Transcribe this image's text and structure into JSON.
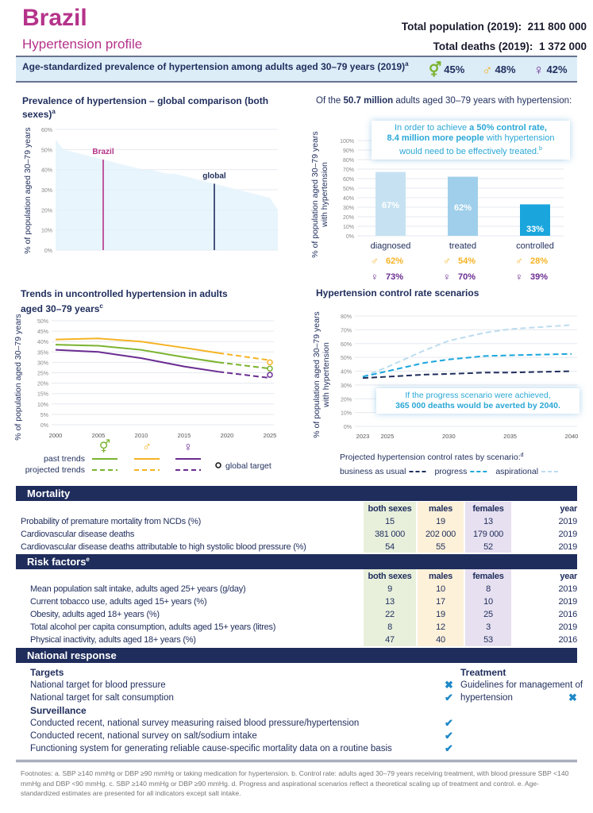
{
  "header": {
    "country": "Brazil",
    "subtitle": "Hypertension profile",
    "population_label": "Total population (2019):",
    "population": "211 800 000",
    "deaths_label": "Total deaths (2019):",
    "deaths": "1 372 000"
  },
  "prevalence_band": {
    "text": "Age-standardized prevalence of hypertension among adults aged 30–79 years (2019)",
    "footnote": "a",
    "both": "45%",
    "male": "48%",
    "female": "42%"
  },
  "colors": {
    "brand": "#b5338a",
    "navy": "#1f2d5c",
    "both": "#7ab32e",
    "male": "#f5b324",
    "female": "#6a2c91",
    "accent": "#2aa7d6"
  },
  "chart_data": [
    {
      "type": "area",
      "title": "Prevalence of hypertension – global comparison (both sexes)",
      "footnote": "a",
      "ylabel": "% of population aged 30–79 years",
      "ylim": [
        0,
        60
      ],
      "yticks": [
        "0%",
        "10%",
        "20%",
        "30%",
        "40%",
        "50%",
        "60%"
      ],
      "grid": true,
      "country_values_sorted": [
        55,
        50,
        49,
        48,
        47,
        46,
        45,
        44,
        43,
        42,
        41,
        40,
        40,
        39,
        38,
        38,
        37,
        36,
        35,
        34,
        33,
        32,
        31,
        30,
        29,
        28,
        27,
        26,
        20
      ],
      "markers": [
        {
          "label": "Brazil",
          "value": 45,
          "color": "#b5338a"
        },
        {
          "label": "global",
          "value": 33,
          "color": "#1f2d5c"
        }
      ]
    },
    {
      "type": "bar",
      "title_prefix": "Of the",
      "title_bold": "50.7 million",
      "title_suffix": "adults aged 30–79 years with hypertension:",
      "ylabel": "% of population aged 30–79 years with hypertension",
      "ylim": [
        0,
        100
      ],
      "yticks": [
        "0%",
        "10%",
        "20%",
        "30%",
        "40%",
        "50%",
        "60%",
        "70%",
        "80%",
        "90%",
        "100%"
      ],
      "categories": [
        "diagnosed",
        "treated",
        "controlled"
      ],
      "values": [
        67,
        62,
        33
      ],
      "value_labels": [
        "67%",
        "62%",
        "33%"
      ],
      "bar_colors": [
        "#c6e2f2",
        "#9fcfea",
        "#1aa6dd"
      ],
      "male": [
        "62%",
        "54%",
        "28%"
      ],
      "female": [
        "73%",
        "70%",
        "39%"
      ],
      "callout": {
        "l1a": "In order to achieve ",
        "l1b": "a 50% control rate,",
        "l2a": "8.4 million more people",
        "l2b": " with hypertension",
        "l3": "would need to be effectively treated.",
        "fn": "b"
      }
    },
    {
      "type": "line",
      "title_l1": "Trends in uncontrolled hypertension in adults",
      "title_l2": "aged 30–79 years",
      "footnote": "c",
      "ylabel": "% of population aged 30–79 years",
      "ylim": [
        0,
        50
      ],
      "yticks": [
        "0%",
        "5%",
        "10%",
        "15%",
        "20%",
        "25%",
        "30%",
        "35%",
        "40%",
        "45%",
        "50%"
      ],
      "xticks": [
        "2000",
        "2005",
        "2010",
        "2015",
        "2020",
        "2025"
      ],
      "x": [
        2000,
        2005,
        2010,
        2015,
        2019,
        2025
      ],
      "past_until": 2019,
      "series": [
        {
          "key": "male",
          "values": [
            41,
            41.5,
            40,
            37,
            34.5,
            31
          ],
          "target": 30
        },
        {
          "key": "both",
          "values": [
            38.5,
            38,
            36,
            32.5,
            30,
            27
          ],
          "target": 27
        },
        {
          "key": "female",
          "values": [
            36,
            35,
            32,
            28,
            25.5,
            22.5
          ],
          "target": 24
        }
      ],
      "legend": {
        "past": "past trends",
        "projected": "projected trends",
        "target": "global target"
      }
    },
    {
      "type": "line",
      "title": "Hypertension control rate scenarios",
      "ylabel": "% of population aged 30–79 years with hypertension",
      "ylim": [
        0,
        80
      ],
      "yticks": [
        "0%",
        "10%",
        "20%",
        "30%",
        "40%",
        "50%",
        "60%",
        "70%",
        "80%"
      ],
      "xticks": [
        "2023",
        "2025",
        "2030",
        "2035",
        "2040"
      ],
      "x": [
        2023,
        2025,
        2028,
        2030,
        2033,
        2035,
        2040
      ],
      "series": [
        {
          "name": "business as usual",
          "color": "#1f2d5c",
          "values": [
            35,
            36,
            37.5,
            38,
            39,
            39,
            40
          ]
        },
        {
          "name": "progress",
          "color": "#1aa6dd",
          "values": [
            36,
            40,
            46,
            48.5,
            51,
            51.5,
            52.5
          ]
        },
        {
          "name": "aspirational",
          "color": "#bcdcef",
          "values": [
            36,
            43,
            55,
            62,
            68,
            70.5,
            73.5
          ]
        }
      ],
      "legend_title": "Projected hypertension control rates by scenario:",
      "legend_fn": "d",
      "callout": {
        "l1": "If the progress scenario were achieved,",
        "l2": "365 000 deaths would be averted by 2040."
      }
    }
  ],
  "mortality": {
    "title": "Mortality",
    "headers": [
      "both sexes",
      "males",
      "females",
      "year"
    ],
    "rows": [
      {
        "label": "Probability of premature mortality from NCDs (%)",
        "v": [
          "15",
          "19",
          "13",
          "2019"
        ]
      },
      {
        "label": "Cardiovascular disease deaths",
        "v": [
          "381 000",
          "202 000",
          "179 000",
          "2019"
        ]
      },
      {
        "label": "Cardiovascular disease deaths attributable to high systolic blood pressure (%)",
        "v": [
          "54",
          "55",
          "52",
          "2019"
        ]
      }
    ]
  },
  "risk": {
    "title": "Risk factors",
    "fn": "e",
    "headers": [
      "both sexes",
      "males",
      "females",
      "year"
    ],
    "rows": [
      {
        "label": "Mean population salt intake, adults aged 25+ years (g/day)",
        "v": [
          "9",
          "10",
          "8",
          "2019"
        ]
      },
      {
        "label": "Current tobacco use, adults aged 15+ years (%)",
        "v": [
          "13",
          "17",
          "10",
          "2019"
        ]
      },
      {
        "label": "Obesity, adults aged 18+ years (%)",
        "v": [
          "22",
          "19",
          "25",
          "2016"
        ]
      },
      {
        "label": "Total alcohol per capita consumption, adults aged 15+ years (litres)",
        "v": [
          "8",
          "12",
          "3",
          "2019"
        ]
      },
      {
        "label": "Physical inactivity, adults aged 18+ years (%)",
        "v": [
          "47",
          "40",
          "53",
          "2016"
        ]
      }
    ]
  },
  "response": {
    "title": "National response",
    "targets": "Targets",
    "surveillance": "Surveillance",
    "treatment": "Treatment",
    "target_items": [
      {
        "label": "National target for blood pressure",
        "status": "✖"
      },
      {
        "label": "National target for salt consumption",
        "status": "✔"
      }
    ],
    "surv_items": [
      {
        "label": "Conducted recent, national survey measuring raised blood pressure/hypertension",
        "status": "✔"
      },
      {
        "label": "Conducted recent, national survey on salt/sodium intake",
        "status": "✔"
      },
      {
        "label": "Functioning system for generating reliable cause-specific mortality data on a routine basis",
        "status": "✔"
      }
    ],
    "treat_l1": "Guidelines for management of",
    "treat_l2": "hypertension",
    "treat_status": "✖"
  },
  "footnotes": "Footnotes: a. SBP ≥140 mmHg or DBP ≥90 mmHg or taking medication for hypertension. b. Control rate: adults aged 30–79 years receiving treatment, with blood pressure SBP <140 mmHg and DBP <90 mmHg. c. SBP ≥140 mmHg or DBP ≥90 mmHg. d. Progress and aspirational scenarios reflect a theoretical scaling up of treatment and control. e. Age-standardized estimates are presented for all indicators except salt intake."
}
